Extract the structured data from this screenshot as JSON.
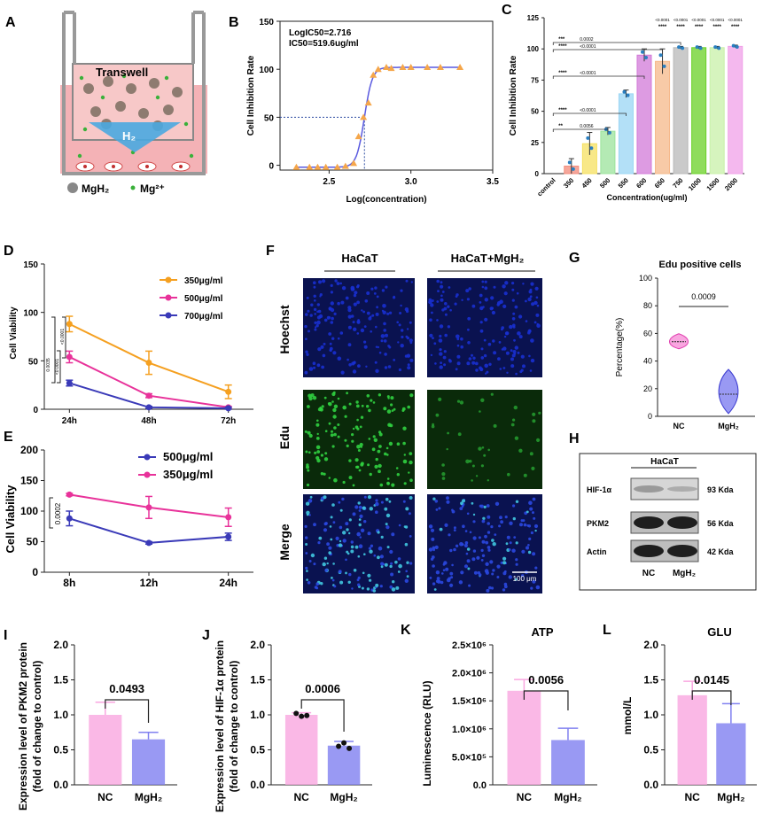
{
  "colors": {
    "pink": "#f9a6e0",
    "pink_dark": "#e040b0",
    "blue": "#8080f0",
    "blue_dark": "#3a3ad0",
    "orange": "#f5a020",
    "magenta": "#e8329a",
    "navy": "#3a3ab8",
    "triangle": "#f5a64a",
    "curve": "#5a5ae0",
    "cell_blue": "#1830d0",
    "cell_green": "#30d040"
  },
  "panel_letters": [
    "A",
    "B",
    "C",
    "D",
    "E",
    "F",
    "G",
    "H",
    "I",
    "J",
    "K",
    "L"
  ],
  "panel_a": {
    "title": "Transwell",
    "arrow_label": "H₂",
    "legend": [
      {
        "label": "MgH₂",
        "icon": "gray-sphere"
      },
      {
        "label": "Mg²⁺",
        "icon": "green-dot"
      }
    ]
  },
  "chart_data": [
    {
      "id": "B",
      "type": "scatter",
      "annotation_lines": [
        "LogIC50=2.716",
        "IC50=519.6ug/ml"
      ],
      "xlabel": "Log(concentration)",
      "ylabel": "Cell Inhibition Rate",
      "xlim": [
        2.2,
        3.5
      ],
      "ylim": [
        -5,
        150
      ],
      "xticks": [
        "2.5",
        "3.0",
        "3.5"
      ],
      "yticks": [
        "0",
        "50",
        "100",
        "150"
      ],
      "points": [
        [
          2.3,
          -2
        ],
        [
          2.38,
          -2
        ],
        [
          2.43,
          -2
        ],
        [
          2.48,
          -2
        ],
        [
          2.55,
          -2
        ],
        [
          2.6,
          -1
        ],
        [
          2.65,
          2
        ],
        [
          2.68,
          30
        ],
        [
          2.71,
          50
        ],
        [
          2.74,
          65
        ],
        [
          2.77,
          94
        ],
        [
          2.8,
          100
        ],
        [
          2.85,
          102
        ],
        [
          2.88,
          101
        ],
        [
          2.95,
          102
        ],
        [
          3.0,
          102
        ],
        [
          3.1,
          102
        ],
        [
          3.18,
          102
        ],
        [
          3.3,
          102
        ]
      ],
      "ic50_log": 2.716,
      "ic50_rate": 50
    },
    {
      "id": "C",
      "type": "bar",
      "ylabel": "Cell Inhibition Rate",
      "xlabel": "Concentration(ug/ml)",
      "ylim": [
        0,
        125
      ],
      "yticks": [
        "0",
        "25",
        "50",
        "75",
        "100",
        "125"
      ],
      "categories": [
        "control",
        "350",
        "450",
        "500",
        "550",
        "600",
        "650",
        "750",
        "1000",
        "1500",
        "2000"
      ],
      "values": [
        0,
        6,
        24,
        34,
        64,
        95,
        90,
        101,
        101,
        101,
        102
      ],
      "errors": [
        0,
        6,
        9,
        3,
        3,
        5,
        10,
        1,
        1,
        1,
        1
      ],
      "bar_colors": [
        "#f4c6c0",
        "#f28a7a",
        "#f5e060",
        "#9be39b",
        "#9ad6f4",
        "#d27ad8",
        "#f5b88a",
        "#b8b8b8",
        "#6ad026",
        "#c8f0a8",
        "#f0a0e8"
      ],
      "sig_top": [
        "<0.0001",
        "<0.0001",
        "<0.0001",
        "<0.0001",
        "<0.0001"
      ],
      "sig_top_stars": [
        "****",
        "****",
        "****",
        "****",
        "****"
      ],
      "comparisons": [
        {
          "stars": "***",
          "p": "0.0002"
        },
        {
          "stars": "****",
          "p": "<0.0001"
        },
        {
          "stars": "****",
          "p": "<0.0001"
        },
        {
          "stars": "****",
          "p": "<0.0001"
        },
        {
          "stars": "**",
          "p": "0.0056"
        }
      ]
    },
    {
      "id": "D",
      "type": "line",
      "ylabel": "Cell Viability",
      "ylim": [
        0,
        150
      ],
      "yticks": [
        "0",
        "50",
        "100",
        "150"
      ],
      "categories": [
        "24h",
        "48h",
        "72h"
      ],
      "series": [
        {
          "name": "350μg/ml",
          "values": [
            88,
            48,
            18
          ],
          "errors": [
            8,
            12,
            7
          ]
        },
        {
          "name": "500μg/ml",
          "values": [
            54,
            14,
            2
          ],
          "errors": [
            6,
            2,
            1
          ]
        },
        {
          "name": "700μg/ml",
          "values": [
            27,
            2,
            1
          ],
          "errors": [
            3,
            1,
            1
          ]
        }
      ],
      "sig_labels": [
        "<0.0001",
        "<0.0001",
        "0.0035"
      ]
    },
    {
      "id": "E",
      "type": "line",
      "ylabel": "Cell Viability",
      "ylim": [
        0,
        200
      ],
      "yticks": [
        "0",
        "50",
        "100",
        "150",
        "200"
      ],
      "categories": [
        "8h",
        "12h",
        "24h"
      ],
      "series": [
        {
          "name": "500μg/ml",
          "values": [
            88,
            48,
            58
          ],
          "errors": [
            12,
            2,
            6
          ]
        },
        {
          "name": "350μg/ml",
          "values": [
            127,
            106,
            90
          ],
          "errors": [
            2,
            18,
            15
          ]
        }
      ],
      "sig_label": "0.0002"
    },
    {
      "id": "G",
      "type": "violin",
      "title": "Edu positive cells",
      "ylabel": "Percentage(%)",
      "ylim": [
        0,
        100
      ],
      "yticks": [
        "0",
        "20",
        "40",
        "60",
        "80",
        "100"
      ],
      "categories": [
        "NC",
        "MgH₂"
      ],
      "medians": [
        54,
        16
      ],
      "p": "0.0009"
    },
    {
      "id": "I",
      "type": "bar",
      "ylabel_lines": [
        "Expression level of PKM2 protein",
        "(fold of change to control)"
      ],
      "ylim": [
        0,
        2.0
      ],
      "yticks": [
        "0.0",
        "0.5",
        "1.0",
        "1.5",
        "2.0"
      ],
      "categories": [
        "NC",
        "MgH₂"
      ],
      "values": [
        1.0,
        0.65
      ],
      "errors": [
        0.18,
        0.1
      ],
      "p": "0.0493"
    },
    {
      "id": "J",
      "type": "bar",
      "ylabel_lines": [
        "Expression level of HIF-1α protein",
        "(fold of change to control)"
      ],
      "ylim": [
        0,
        2.0
      ],
      "yticks": [
        "0.0",
        "0.5",
        "1.0",
        "1.5",
        "2.0"
      ],
      "categories": [
        "NC",
        "MgH₂"
      ],
      "values": [
        1.0,
        0.56
      ],
      "errors": [
        0.03,
        0.06
      ],
      "p": "0.0006",
      "dots": [
        [
          1.02,
          0.98,
          0.99
        ],
        [
          0.55,
          0.6,
          0.52
        ]
      ]
    },
    {
      "id": "K",
      "type": "bar",
      "title": "ATP",
      "ylabel": "Luminescence  (RLU)",
      "ylim": [
        0,
        2500000
      ],
      "yticks": [
        "0.0",
        "5.0×10⁵",
        "1.0×10⁶",
        "1.5×10⁶",
        "2.0×10⁶",
        "2.5×10⁶"
      ],
      "categories": [
        "NC",
        "MgH₂"
      ],
      "values": [
        1680000,
        800000
      ],
      "errors": [
        200000,
        210000
      ],
      "p": "0.0056"
    },
    {
      "id": "L",
      "type": "bar",
      "title": "GLU",
      "ylabel": "mmol/L",
      "ylim": [
        0,
        2.0
      ],
      "yticks": [
        "0.0",
        "0.5",
        "1.0",
        "1.5",
        "2.0"
      ],
      "categories": [
        "NC",
        "MgH₂"
      ],
      "values": [
        1.28,
        0.88
      ],
      "errors": [
        0.2,
        0.28
      ],
      "p": "0.0145"
    }
  ],
  "panel_f": {
    "columns": [
      "HaCaT",
      "HaCaT+MgH₂"
    ],
    "rows": [
      "Hoechst",
      "Edu",
      "Merge"
    ],
    "scale_bar": "100 μm"
  },
  "panel_h": {
    "header": "HaCaT",
    "rows": [
      {
        "label": "HIF-1α",
        "size": "93 Kda"
      },
      {
        "label": "PKM2",
        "size": "56 Kda"
      },
      {
        "label": "Actin",
        "size": "42 Kda"
      }
    ],
    "lanes": [
      "NC",
      "MgH₂"
    ]
  }
}
